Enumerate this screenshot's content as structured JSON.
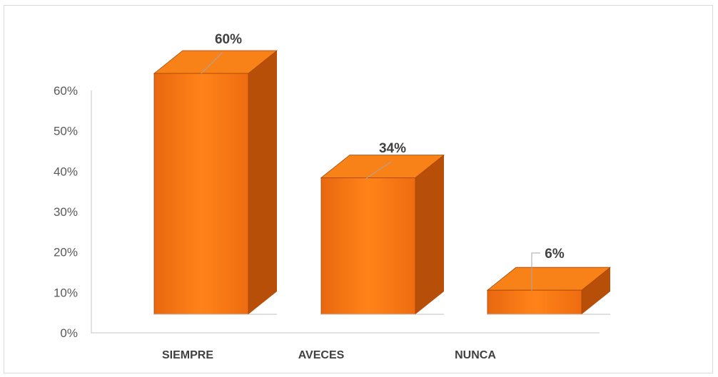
{
  "chart_data": {
    "type": "bar",
    "style": "3d-column",
    "categories": [
      "SIEMPRE",
      "AVECES",
      "NUNCA"
    ],
    "values": [
      60,
      34,
      6
    ],
    "data_labels": [
      "60%",
      "34%",
      "6%"
    ],
    "y_ticks": [
      "0%",
      "10%",
      "20%",
      "30%",
      "40%",
      "50%",
      "60%"
    ],
    "ylim": [
      0,
      60
    ],
    "grid": false,
    "legend": "none",
    "colors": {
      "front": "#f37413",
      "front_light": "#ff8a1c",
      "top": "#f98218",
      "side": "#b84f09",
      "edge": "#a34507",
      "axis": "#d9d9d9",
      "leader": "#a6a6a6"
    }
  }
}
